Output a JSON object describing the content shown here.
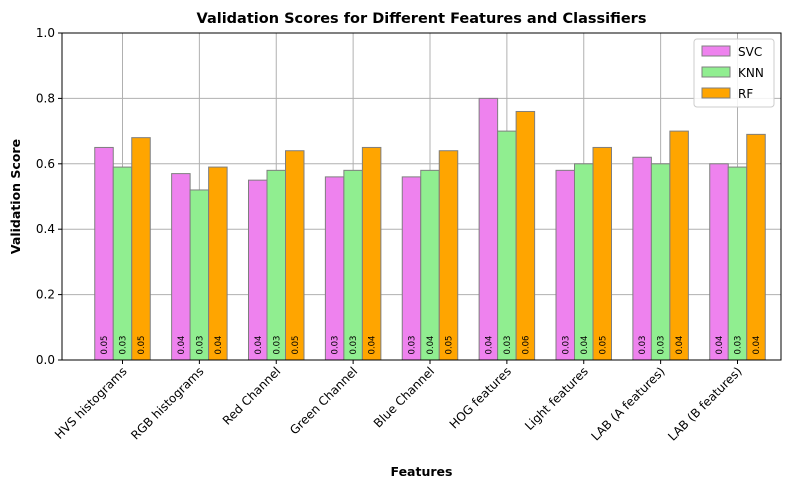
{
  "chart_data": {
    "type": "bar",
    "title": "Validation Scores for Different Features and Classifiers",
    "xlabel": "Features",
    "ylabel": "Validation Score",
    "ylim": [
      0,
      1.0
    ],
    "yticks": [
      "0.0",
      "0.2",
      "0.4",
      "0.6",
      "0.8",
      "1.0"
    ],
    "grid": true,
    "legend_position": "top-right",
    "categories": [
      "HVS histograms",
      "RGB histograms",
      "Red Channel",
      "Green Channel",
      "Blue Channel",
      "HOG features",
      "Light features",
      "LAB (A features)",
      "LAB (B features)"
    ],
    "series": [
      {
        "name": "SVC",
        "color": "#ee82ee",
        "values": [
          0.65,
          0.57,
          0.55,
          0.56,
          0.56,
          0.8,
          0.58,
          0.62,
          0.6
        ],
        "labels": [
          "0.05",
          "0.04",
          "0.04",
          "0.03",
          "0.03",
          "0.04",
          "0.03",
          "0.03",
          "0.04"
        ]
      },
      {
        "name": "KNN",
        "color": "#90ee90",
        "values": [
          0.59,
          0.52,
          0.58,
          0.58,
          0.58,
          0.7,
          0.6,
          0.6,
          0.59
        ],
        "labels": [
          "0.03",
          "0.03",
          "0.03",
          "0.03",
          "0.04",
          "0.03",
          "0.04",
          "0.03",
          "0.03"
        ]
      },
      {
        "name": "RF",
        "color": "#ffa500",
        "values": [
          0.68,
          0.59,
          0.64,
          0.65,
          0.64,
          0.76,
          0.65,
          0.7,
          0.69
        ],
        "labels": [
          "0.05",
          "0.04",
          "0.05",
          "0.04",
          "0.05",
          "0.06",
          "0.05",
          "0.04",
          "0.04"
        ]
      }
    ]
  }
}
